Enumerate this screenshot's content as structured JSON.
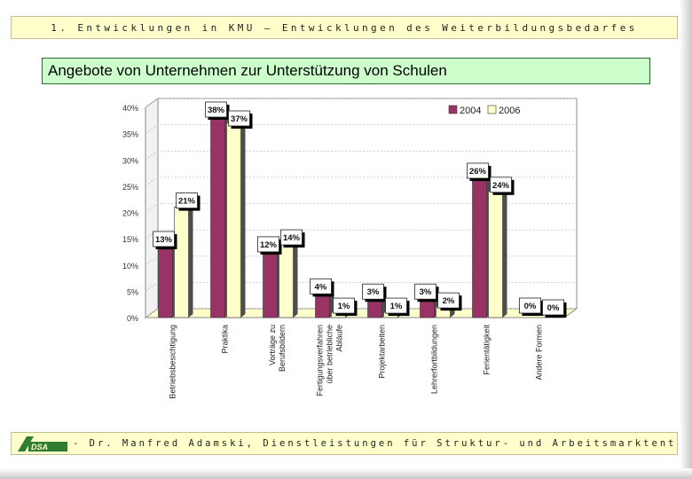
{
  "header": {
    "text": "1. Entwicklungen in KMU – Entwicklungen des Weiterbildungsbedarfes"
  },
  "title": {
    "text": "Angebote von Unternehmen zur Unterstützung von Schulen"
  },
  "footer": {
    "text": "- Dr. Manfred Adamski, Dienstleistungen für Struktur- und Arbeitsmarktentwicklung GmbH",
    "logo_text": "DSA"
  },
  "colors": {
    "series_2004": "#993366",
    "series_2006": "#ffffcc",
    "floor": "#ffffcc",
    "page_bg": "#ffffff",
    "title_bg": "#ccffcc",
    "header_bg": "#ffffcc"
  },
  "chart_data": {
    "type": "bar",
    "title": "Angebote von Unternehmen zur Unterstützung von Schulen",
    "categories": [
      [
        "Betriebsbesichtigung"
      ],
      [
        "Praktika"
      ],
      [
        "Vorträge zu",
        "Berufsbildern"
      ],
      [
        "Fertigungsverfahren",
        "über betriebliche",
        "Abläufe"
      ],
      [
        "Projektarbeiten"
      ],
      [
        "Lehrerfortbildungen"
      ],
      [
        "Ferientätigkeit"
      ],
      [
        "Andere Formen"
      ]
    ],
    "series": [
      {
        "name": "2004",
        "values": [
          13,
          38,
          12,
          4,
          3,
          3,
          26,
          0
        ]
      },
      {
        "name": "2006",
        "values": [
          21,
          37,
          14,
          1,
          1,
          2,
          24,
          0
        ]
      }
    ],
    "data_labels": [
      [
        "13%",
        "38%",
        "12%",
        "4%",
        "3%",
        "3%",
        "26%",
        "0%"
      ],
      [
        "21%",
        "37%",
        "14%",
        "1%",
        "1%",
        "2%",
        "24%",
        "0%"
      ]
    ],
    "yticks": [
      "0%",
      "5%",
      "10%",
      "15%",
      "20%",
      "25%",
      "30%",
      "35%",
      "40%"
    ],
    "ylim": [
      0,
      40
    ],
    "legend": [
      "2004",
      "2006"
    ],
    "xlabel": "",
    "ylabel": ""
  }
}
